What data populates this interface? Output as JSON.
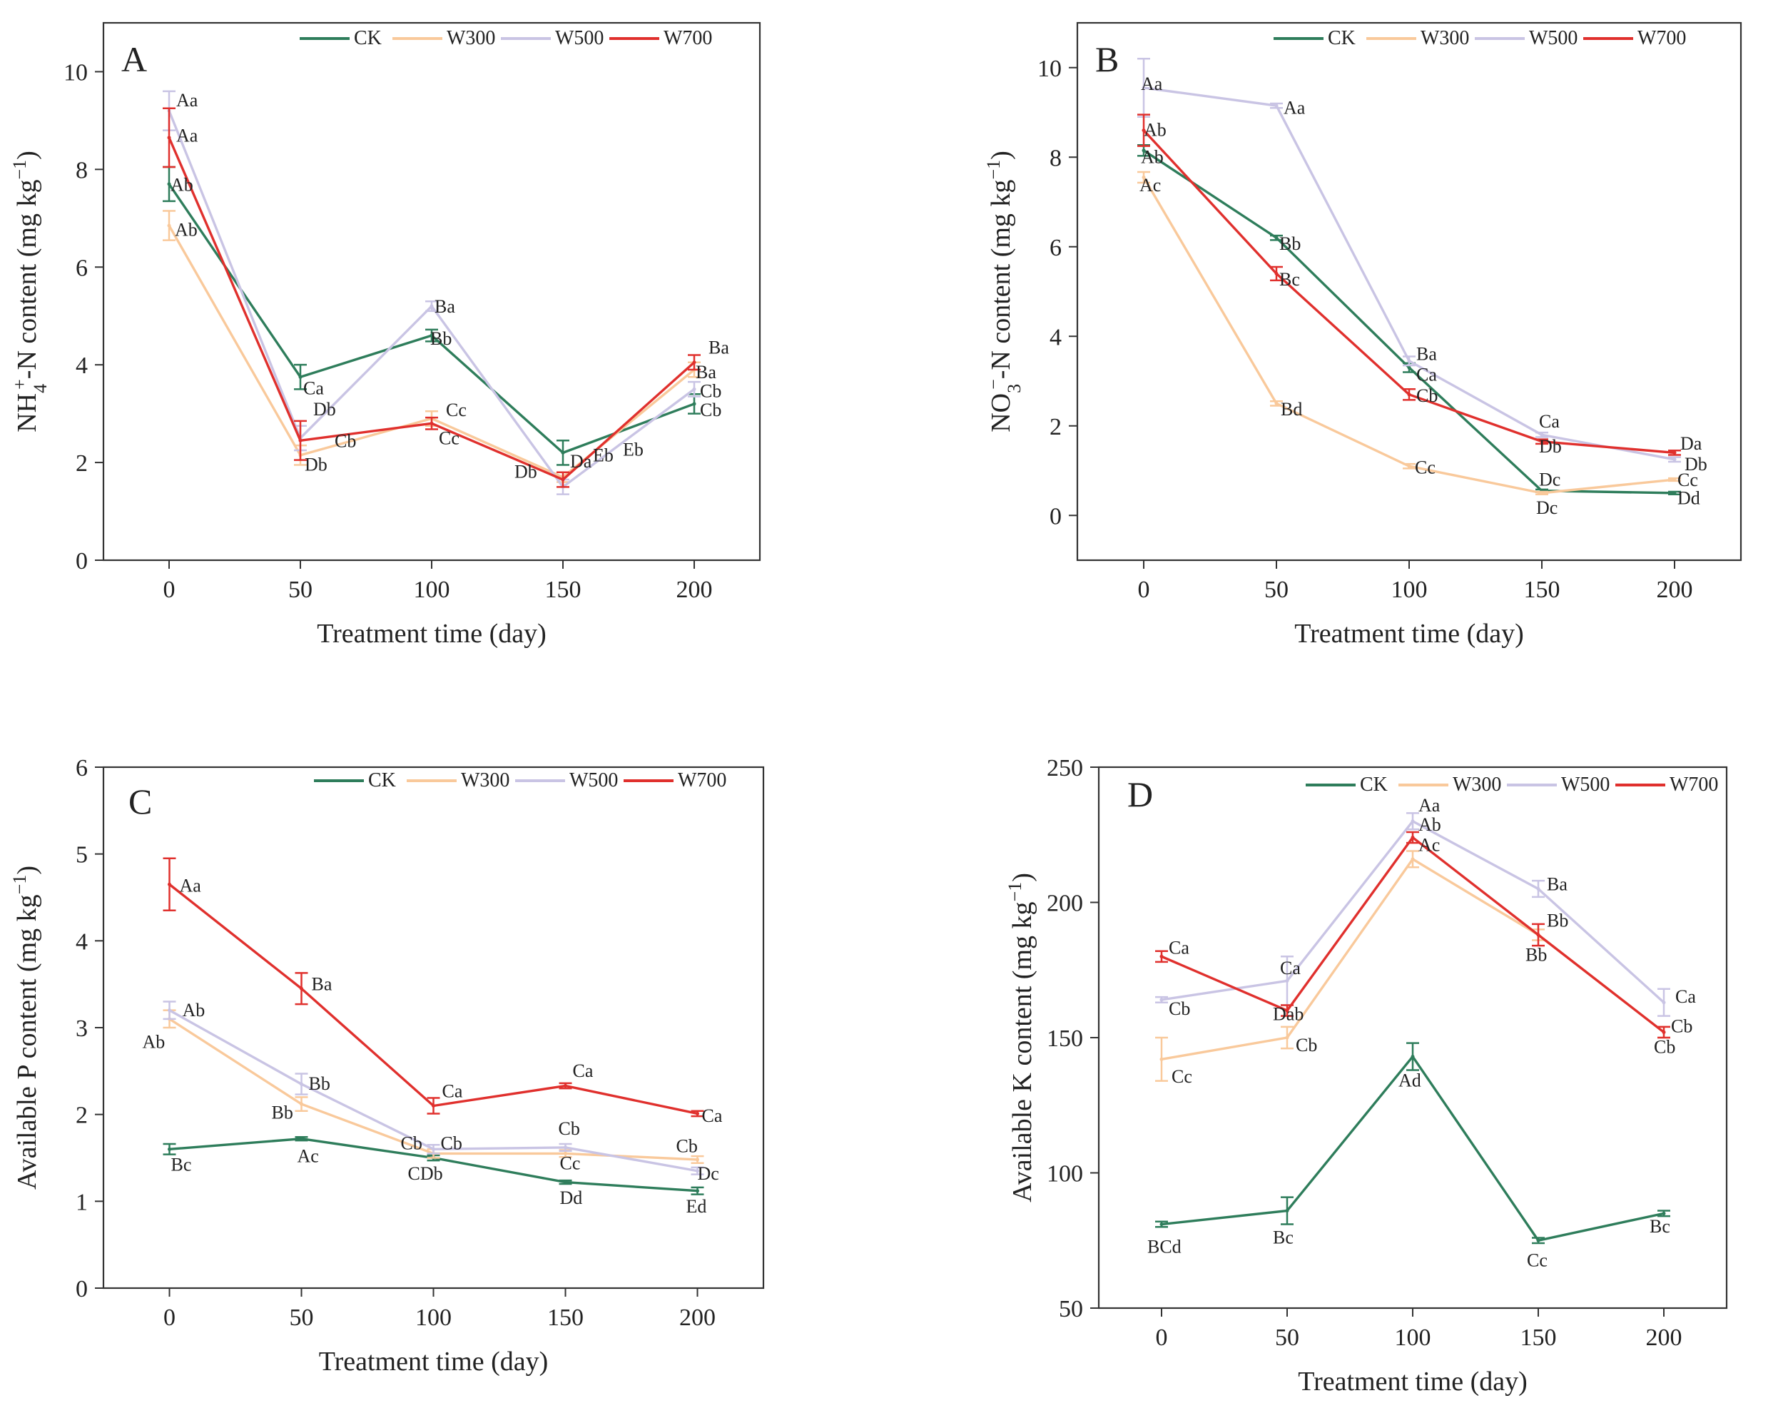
{
  "chart_data": [
    {
      "type": "line",
      "panel": "A",
      "xlabel": "Treatment time (day)",
      "ylabel_main": "NH",
      "ylabel_sub": "4",
      "ylabel_sup": "+",
      "ylabel_rest": "-N content (mg kg",
      "ylabel_exp": "−1",
      "ylabel_close": ")",
      "x": [
        0,
        50,
        100,
        150,
        200
      ],
      "xlim": [
        -25,
        225
      ],
      "ylim": [
        0,
        11
      ],
      "xticks": [
        0,
        50,
        100,
        150,
        200
      ],
      "yticks": [
        0,
        2,
        4,
        6,
        8,
        10
      ],
      "legend_position": "top",
      "series": [
        {
          "name": "CK",
          "color": "#2e7d5b",
          "values": [
            7.7,
            3.75,
            4.6,
            2.2,
            3.2
          ],
          "errors": [
            0.35,
            0.25,
            0.12,
            0.25,
            0.2
          ]
        },
        {
          "name": "W300",
          "color": "#f9c99b",
          "values": [
            6.85,
            2.15,
            2.9,
            1.7,
            3.9
          ],
          "errors": [
            0.3,
            0.2,
            0.15,
            0.1,
            0.15
          ]
        },
        {
          "name": "W500",
          "color": "#c9c4e4",
          "values": [
            9.2,
            2.5,
            5.2,
            1.5,
            3.5
          ],
          "errors": [
            0.4,
            0.25,
            0.1,
            0.15,
            0.15
          ]
        },
        {
          "name": "W700",
          "color": "#e0302d",
          "values": [
            8.65,
            2.45,
            2.8,
            1.65,
            4.05
          ],
          "errors": [
            0.6,
            0.4,
            0.12,
            0.15,
            0.15
          ]
        }
      ],
      "annotations": [
        {
          "text": "Aa",
          "x": 0,
          "y": 9.2
        },
        {
          "text": "Aa",
          "x": 0,
          "y": 8.45
        },
        {
          "text": "Ab",
          "x": 0,
          "y": 7.65
        },
        {
          "text": "Ab",
          "x": 0,
          "y": 6.9
        },
        {
          "text": "Ca",
          "x": 50,
          "y": 3.6
        },
        {
          "text": "Db",
          "x": 50,
          "y": 2.85
        },
        {
          "text": "Cb",
          "x": 50,
          "y": 2.4
        },
        {
          "text": "Db",
          "x": 50,
          "y": 1.95
        },
        {
          "text": "Ba",
          "x": 100,
          "y": 5.1
        },
        {
          "text": "Bb",
          "x": 100,
          "y": 4.5
        },
        {
          "text": "Cc",
          "x": 100,
          "y": 2.95
        },
        {
          "text": "Cc",
          "x": 100,
          "y": 2.55
        },
        {
          "text": "Db",
          "x": 150,
          "y": 1.95
        },
        {
          "text": "Da",
          "x": 150,
          "y": 2.1
        },
        {
          "text": "Eb",
          "x": 150,
          "y": 2.2
        },
        {
          "text": "Eb",
          "x": 150,
          "y": 2.2
        },
        {
          "text": "Ba",
          "x": 200,
          "y": 4.2
        },
        {
          "text": "Ba",
          "x": 200,
          "y": 3.9
        },
        {
          "text": "Cb",
          "x": 200,
          "y": 3.4
        },
        {
          "text": "Cb",
          "x": 200,
          "y": 3.1
        }
      ]
    },
    {
      "type": "line",
      "panel": "B",
      "xlabel": "Treatment time (day)",
      "ylabel_main": "NO",
      "ylabel_sub": "3",
      "ylabel_sup": "−",
      "ylabel_rest": "-N content (mg kg",
      "ylabel_exp": "−1",
      "ylabel_close": ")",
      "x": [
        0,
        50,
        100,
        150,
        200
      ],
      "xlim": [
        -25,
        225
      ],
      "ylim": [
        -1,
        11
      ],
      "xticks": [
        0,
        50,
        100,
        150,
        200
      ],
      "yticks": [
        0,
        2,
        4,
        6,
        8,
        10
      ],
      "legend_position": "top",
      "series": [
        {
          "name": "CK",
          "color": "#2e7d5b",
          "values": [
            8.15,
            6.2,
            3.3,
            0.55,
            0.5
          ],
          "errors": [
            0.12,
            0.05,
            0.1,
            0.03,
            0.03
          ]
        },
        {
          "name": "W300",
          "color": "#f9c99b",
          "values": [
            7.55,
            2.5,
            1.1,
            0.5,
            0.8
          ],
          "errors": [
            0.12,
            0.05,
            0.05,
            0.03,
            0.03
          ]
        },
        {
          "name": "W500",
          "color": "#c9c4e4",
          "values": [
            9.55,
            9.15,
            3.45,
            1.8,
            1.25
          ],
          "errors": [
            0.65,
            0.05,
            0.1,
            0.05,
            0.05
          ]
        },
        {
          "name": "W700",
          "color": "#e0302d",
          "values": [
            8.6,
            5.4,
            2.7,
            1.65,
            1.4
          ],
          "errors": [
            0.35,
            0.15,
            0.12,
            0.05,
            0.05
          ]
        }
      ],
      "annotations": [
        {
          "text": "Aa",
          "x": 0,
          "y": 9.5
        },
        {
          "text": "Ab",
          "x": 0,
          "y": 8.6
        },
        {
          "text": "Ab",
          "x": 0,
          "y": 8.0
        },
        {
          "text": "Ac",
          "x": 0,
          "y": 7.3
        },
        {
          "text": "Aa",
          "x": 50,
          "y": 9.0
        },
        {
          "text": "Bb",
          "x": 50,
          "y": 6.0
        },
        {
          "text": "Bc",
          "x": 50,
          "y": 5.2
        },
        {
          "text": "Bd",
          "x": 50,
          "y": 2.3
        },
        {
          "text": "Ba",
          "x": 100,
          "y": 3.6
        },
        {
          "text": "Ca",
          "x": 100,
          "y": 3.1
        },
        {
          "text": "Cb",
          "x": 100,
          "y": 2.6
        },
        {
          "text": "Cc",
          "x": 100,
          "y": 1.0
        },
        {
          "text": "Ca",
          "x": 150,
          "y": 2.0
        },
        {
          "text": "Db",
          "x": 150,
          "y": 1.5
        },
        {
          "text": "Dc",
          "x": 150,
          "y": 0.7
        },
        {
          "text": "Dc",
          "x": 150,
          "y": 0.1
        },
        {
          "text": "Da",
          "x": 200,
          "y": 1.5
        },
        {
          "text": "Db",
          "x": 200,
          "y": 1.1
        },
        {
          "text": "Cc",
          "x": 200,
          "y": 0.75
        },
        {
          "text": "Dd",
          "x": 200,
          "y": 0.35
        }
      ]
    },
    {
      "type": "line",
      "panel": "C",
      "xlabel": "Treatment time (day)",
      "ylabel_main": "Available P content (mg kg",
      "ylabel_exp": "−1",
      "ylabel_close": ")",
      "x": [
        0,
        50,
        100,
        150,
        200
      ],
      "xlim": [
        -25,
        225
      ],
      "ylim": [
        0,
        6
      ],
      "xticks": [
        0,
        50,
        100,
        150,
        200
      ],
      "yticks": [
        0,
        1,
        2,
        3,
        4,
        5,
        6
      ],
      "legend_position": "top",
      "series": [
        {
          "name": "CK",
          "color": "#2e7d5b",
          "values": [
            1.6,
            1.72,
            1.5,
            1.22,
            1.12
          ],
          "errors": [
            0.06,
            0.02,
            0.03,
            0.02,
            0.04
          ]
        },
        {
          "name": "W300",
          "color": "#f9c99b",
          "values": [
            3.1,
            2.12,
            1.55,
            1.55,
            1.48
          ],
          "errors": [
            0.1,
            0.08,
            0.05,
            0.04,
            0.04
          ]
        },
        {
          "name": "W500",
          "color": "#c9c4e4",
          "values": [
            3.2,
            2.35,
            1.6,
            1.62,
            1.35
          ],
          "errors": [
            0.1,
            0.12,
            0.05,
            0.04,
            0.04
          ]
        },
        {
          "name": "W700",
          "color": "#e0302d",
          "values": [
            4.65,
            3.45,
            2.1,
            2.33,
            2.01
          ],
          "errors": [
            0.3,
            0.18,
            0.09,
            0.03,
            0.03
          ]
        }
      ],
      "annotations": [
        {
          "text": "Aa",
          "x": 0,
          "y": 4.6
        },
        {
          "text": "Ab",
          "x": 0,
          "y": 3.1
        },
        {
          "text": "Ab",
          "x": 0,
          "y": 2.85
        },
        {
          "text": "Bc",
          "x": 0,
          "y": 1.4
        },
        {
          "text": "Ba",
          "x": 50,
          "y": 3.45
        },
        {
          "text": "Bb",
          "x": 50,
          "y": 2.3
        },
        {
          "text": "Bb",
          "x": 50,
          "y": 2.0
        },
        {
          "text": "Ac",
          "x": 50,
          "y": 1.5
        },
        {
          "text": "Ca",
          "x": 100,
          "y": 2.2
        },
        {
          "text": "Cb",
          "x": 100,
          "y": 1.65
        },
        {
          "text": "Cb",
          "x": 100,
          "y": 1.65
        },
        {
          "text": "CDb",
          "x": 100,
          "y": 1.3
        },
        {
          "text": "Ca",
          "x": 150,
          "y": 2.45
        },
        {
          "text": "Cb",
          "x": 150,
          "y": 1.8
        },
        {
          "text": "Cc",
          "x": 150,
          "y": 1.4
        },
        {
          "text": "Dd",
          "x": 150,
          "y": 1.02
        },
        {
          "text": "Ca",
          "x": 200,
          "y": 1.95
        },
        {
          "text": "Cb",
          "x": 200,
          "y": 1.6
        },
        {
          "text": "Dc",
          "x": 200,
          "y": 1.3
        },
        {
          "text": "Ed",
          "x": 200,
          "y": 0.92
        }
      ]
    },
    {
      "type": "line",
      "panel": "D",
      "xlabel": "Treatment time (day)",
      "ylabel_main": "Available K content (mg kg",
      "ylabel_exp": "−1",
      "ylabel_close": ")",
      "x": [
        0,
        50,
        100,
        150,
        200
      ],
      "xlim": [
        -25,
        225
      ],
      "ylim": [
        50,
        250
      ],
      "xticks": [
        0,
        50,
        100,
        150,
        200
      ],
      "yticks": [
        50,
        100,
        150,
        200,
        250
      ],
      "legend_position": "top",
      "series": [
        {
          "name": "CK",
          "color": "#2e7d5b",
          "values": [
            81,
            86,
            143,
            75,
            85
          ],
          "errors": [
            1,
            5,
            5,
            1,
            1
          ]
        },
        {
          "name": "W300",
          "color": "#f9c99b",
          "values": [
            142,
            150,
            216,
            188,
            152
          ],
          "errors": [
            8,
            4,
            3,
            2,
            2
          ]
        },
        {
          "name": "W500",
          "color": "#c9c4e4",
          "values": [
            164,
            171,
            230,
            205,
            163
          ],
          "errors": [
            1,
            9,
            3,
            3,
            5
          ]
        },
        {
          "name": "W700",
          "color": "#e0302d",
          "values": [
            180,
            160,
            224,
            188,
            152
          ],
          "errors": [
            2,
            2,
            2,
            4,
            2
          ]
        }
      ],
      "annotations": [
        {
          "text": "Ca",
          "x": 0,
          "y": 181
        },
        {
          "text": "Cb",
          "x": 0,
          "y": 160
        },
        {
          "text": "Cc",
          "x": 0,
          "y": 135
        },
        {
          "text": "BCd",
          "x": 0,
          "y": 72
        },
        {
          "text": "Ca",
          "x": 50,
          "y": 174
        },
        {
          "text": "Dab",
          "x": 50,
          "y": 157
        },
        {
          "text": "Cb",
          "x": 50,
          "y": 145
        },
        {
          "text": "Bc",
          "x": 50,
          "y": 76
        },
        {
          "text": "Aa",
          "x": 100,
          "y": 232
        },
        {
          "text": "Ab",
          "x": 100,
          "y": 225
        },
        {
          "text": "Ac",
          "x": 100,
          "y": 218
        },
        {
          "text": "Ad",
          "x": 100,
          "y": 133
        },
        {
          "text": "Ba",
          "x": 150,
          "y": 205
        },
        {
          "text": "Bb",
          "x": 150,
          "y": 190
        },
        {
          "text": "Bb",
          "x": 150,
          "y": 180
        },
        {
          "text": "Cc",
          "x": 150,
          "y": 67
        },
        {
          "text": "Ca",
          "x": 200,
          "y": 164
        },
        {
          "text": "Cb",
          "x": 200,
          "y": 152
        },
        {
          "text": "Cb",
          "x": 200,
          "y": 147
        },
        {
          "text": "Bc",
          "x": 200,
          "y": 79
        }
      ]
    }
  ]
}
